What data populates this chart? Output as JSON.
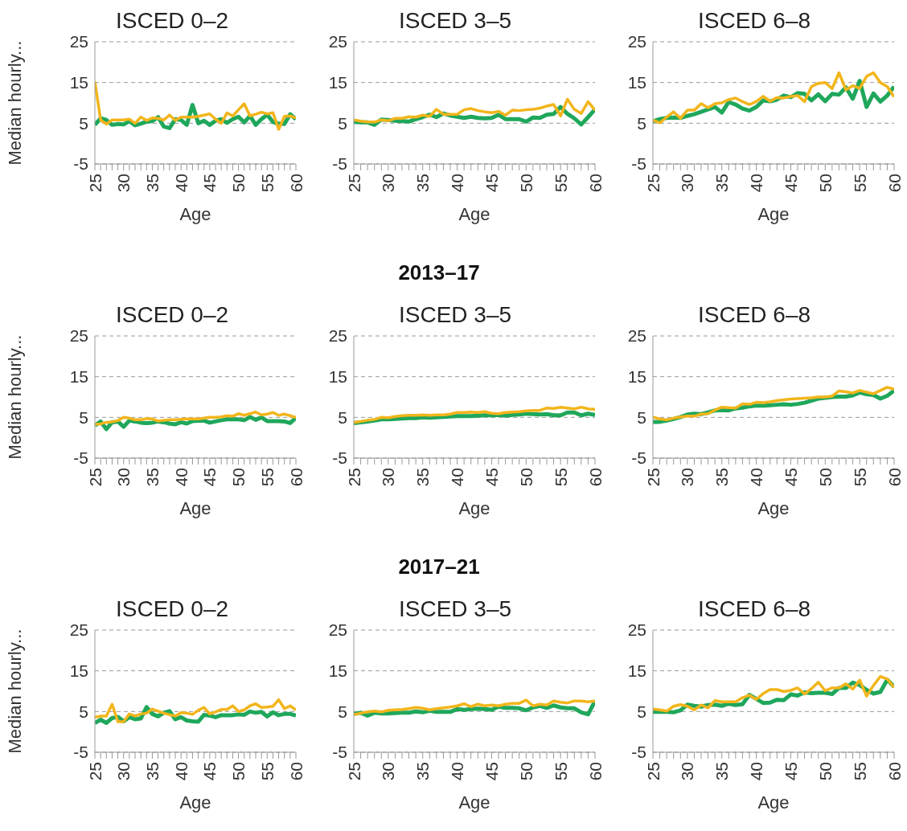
{
  "chart_data": [
    {
      "type": "line",
      "title": "ISCED 0–2",
      "xlabel": "Age",
      "ylabel": "Median hourly...",
      "x": [
        25,
        26,
        27,
        28,
        29,
        30,
        31,
        32,
        33,
        34,
        35,
        36,
        37,
        38,
        39,
        40,
        41,
        42,
        43,
        44,
        45,
        46,
        47,
        48,
        49,
        50,
        51,
        52,
        53,
        54,
        55,
        56,
        57,
        58,
        59,
        60
      ],
      "xlim": [
        25,
        60
      ],
      "xticks": [
        25,
        {
          "value": 26,
          "label": null
        },
        {
          "value": 27,
          "label": null
        },
        {
          "value": 28,
          "label": null
        },
        {
          "value": 29,
          "label": null
        },
        30,
        {
          "value": 31,
          "label": null
        },
        {
          "value": 32,
          "label": null
        },
        {
          "value": 33,
          "label": null
        },
        {
          "value": 34,
          "label": null
        },
        35,
        {
          "value": 36,
          "label": null
        },
        {
          "value": 37,
          "label": null
        },
        {
          "value": 38,
          "label": null
        },
        {
          "value": 39,
          "label": null
        },
        40,
        {
          "value": 41,
          "label": null
        },
        {
          "value": 42,
          "label": null
        },
        {
          "value": 43,
          "label": null
        },
        {
          "value": 44,
          "label": null
        },
        45,
        {
          "value": 46,
          "label": null
        },
        {
          "value": 47,
          "label": null
        },
        {
          "value": 48,
          "label": null
        },
        {
          "value": 49,
          "label": null
        },
        50,
        {
          "value": 51,
          "label": null
        },
        {
          "value": 52,
          "label": null
        },
        {
          "value": 53,
          "label": null
        },
        {
          "value": 54,
          "label": null
        },
        55,
        {
          "value": 56,
          "label": null
        },
        {
          "value": 57,
          "label": null
        },
        {
          "value": 58,
          "label": null
        },
        {
          "value": 59,
          "label": null
        },
        60
      ],
      "ylim": [
        -5,
        25
      ],
      "yticks": [
        -5,
        5,
        15,
        25
      ],
      "grid": "y",
      "series": [
        {
          "color": "#1fa75b",
          "values": [
            4.6,
            6.2,
            5.8,
            4.6,
            4.8,
            4.7,
            5.5,
            4.5,
            4.9,
            5.4,
            5.5,
            6.5,
            4.2,
            3.8,
            6,
            5.8,
            4.6,
            9.5,
            5,
            5.6,
            4.6,
            5.6,
            6,
            5.1,
            6,
            6.6,
            5.2,
            6.8,
            4.6,
            6,
            7.1,
            5.3,
            4.9,
            4.8,
            7.2,
            6
          ]
        },
        {
          "color": "#f2b51b",
          "values": [
            15.2,
            5.8,
            4.8,
            5.8,
            5.8,
            5.8,
            6,
            5,
            6.5,
            5.7,
            6.3,
            6.2,
            5.8,
            7,
            5.7,
            6.5,
            6.5,
            6.5,
            6.7,
            7,
            7.3,
            6,
            5,
            7.5,
            6.8,
            8.3,
            9.8,
            6.8,
            7.2,
            7.7,
            7.3,
            7.6,
            3.5,
            6.7,
            6.8,
            6.3
          ]
        }
      ]
    },
    {
      "type": "line",
      "title": "ISCED 3–5",
      "xlabel": "Age",
      "x": [
        25,
        26,
        27,
        28,
        29,
        30,
        31,
        32,
        33,
        34,
        35,
        36,
        37,
        38,
        39,
        40,
        41,
        42,
        43,
        44,
        45,
        46,
        47,
        48,
        49,
        50,
        51,
        52,
        53,
        54,
        55,
        56,
        57,
        58,
        59,
        60
      ],
      "xlim": [
        25,
        60
      ],
      "xticks": [
        25,
        {
          "value": 26,
          "label": null
        },
        {
          "value": 27,
          "label": null
        },
        {
          "value": 28,
          "label": null
        },
        {
          "value": 29,
          "label": null
        },
        30,
        {
          "value": 31,
          "label": null
        },
        {
          "value": 32,
          "label": null
        },
        {
          "value": 33,
          "label": null
        },
        {
          "value": 34,
          "label": null
        },
        35,
        {
          "value": 36,
          "label": null
        },
        {
          "value": 37,
          "label": null
        },
        {
          "value": 38,
          "label": null
        },
        {
          "value": 39,
          "label": null
        },
        40,
        {
          "value": 41,
          "label": null
        },
        {
          "value": 42,
          "label": null
        },
        {
          "value": 43,
          "label": null
        },
        {
          "value": 44,
          "label": null
        },
        45,
        {
          "value": 46,
          "label": null
        },
        {
          "value": 47,
          "label": null
        },
        {
          "value": 48,
          "label": null
        },
        {
          "value": 49,
          "label": null
        },
        50,
        {
          "value": 51,
          "label": null
        },
        {
          "value": 52,
          "label": null
        },
        {
          "value": 53,
          "label": null
        },
        {
          "value": 54,
          "label": null
        },
        55,
        {
          "value": 56,
          "label": null
        },
        {
          "value": 57,
          "label": null
        },
        {
          "value": 58,
          "label": null
        },
        {
          "value": 59,
          "label": null
        },
        60
      ],
      "ylim": [
        -5,
        25
      ],
      "yticks": [
        -5,
        5,
        15,
        25
      ],
      "grid": "y",
      "series": [
        {
          "color": "#1fa75b",
          "values": [
            5.3,
            5.2,
            5.2,
            4.6,
            5.9,
            5.8,
            5.6,
            5.5,
            5.4,
            6,
            6.5,
            7.1,
            6.5,
            7.4,
            6.9,
            6.6,
            6.3,
            6.6,
            6.3,
            6.2,
            6.3,
            7.1,
            6,
            6,
            6,
            5.4,
            6.4,
            6.3,
            7.1,
            7.3,
            9,
            7.3,
            6.2,
            4.7,
            6.5,
            8.4
          ]
        },
        {
          "color": "#f2b51b",
          "values": [
            5.8,
            5.5,
            5.3,
            5.3,
            5.8,
            5.6,
            6.2,
            6.2,
            6.6,
            6.5,
            7,
            6.7,
            8.4,
            7.2,
            7.2,
            7.2,
            8.3,
            8.6,
            8.1,
            7.8,
            7.6,
            7.9,
            7,
            8.2,
            8.1,
            8.3,
            8.4,
            8.7,
            9.2,
            9.6,
            6.8,
            10.9,
            8.4,
            7.4,
            10.3,
            8.2
          ]
        }
      ]
    },
    {
      "type": "line",
      "title": "ISCED 6–8",
      "xlabel": "Age",
      "x": [
        25,
        26,
        27,
        28,
        29,
        30,
        31,
        32,
        33,
        34,
        35,
        36,
        37,
        38,
        39,
        40,
        41,
        42,
        43,
        44,
        45,
        46,
        47,
        48,
        49,
        50,
        51,
        52,
        53,
        54,
        55,
        56,
        57,
        58,
        59,
        60
      ],
      "xlim": [
        25,
        60
      ],
      "xticks": [
        25,
        {
          "value": 26,
          "label": null
        },
        {
          "value": 27,
          "label": null
        },
        {
          "value": 28,
          "label": null
        },
        {
          "value": 29,
          "label": null
        },
        30,
        {
          "value": 31,
          "label": null
        },
        {
          "value": 32,
          "label": null
        },
        {
          "value": 33,
          "label": null
        },
        {
          "value": 34,
          "label": null
        },
        35,
        {
          "value": 36,
          "label": null
        },
        {
          "value": 37,
          "label": null
        },
        {
          "value": 38,
          "label": null
        },
        {
          "value": 39,
          "label": null
        },
        40,
        {
          "value": 41,
          "label": null
        },
        {
          "value": 42,
          "label": null
        },
        {
          "value": 43,
          "label": null
        },
        {
          "value": 44,
          "label": null
        },
        45,
        {
          "value": 46,
          "label": null
        },
        {
          "value": 47,
          "label": null
        },
        {
          "value": 48,
          "label": null
        },
        {
          "value": 49,
          "label": null
        },
        50,
        {
          "value": 51,
          "label": null
        },
        {
          "value": 52,
          "label": null
        },
        {
          "value": 53,
          "label": null
        },
        {
          "value": 54,
          "label": null
        },
        55,
        {
          "value": 56,
          "label": null
        },
        {
          "value": 57,
          "label": null
        },
        {
          "value": 58,
          "label": null
        },
        {
          "value": 59,
          "label": null
        },
        60
      ],
      "ylim": [
        -5,
        25
      ],
      "yticks": [
        -5,
        5,
        15,
        25
      ],
      "grid": "y",
      "series": [
        {
          "color": "#1fa75b",
          "values": [
            5.5,
            6,
            6.3,
            6.4,
            6.3,
            6.8,
            7.2,
            7.8,
            8.4,
            9,
            7.6,
            10.2,
            9.6,
            8.6,
            8.1,
            9,
            10.6,
            10.4,
            10.8,
            11.8,
            11.4,
            12.4,
            12.2,
            10.6,
            12.1,
            10.4,
            12.2,
            12,
            13.8,
            11,
            15.4,
            9,
            12.3,
            10.3,
            11.8,
            14
          ]
        },
        {
          "color": "#f2b51b",
          "values": [
            5.8,
            5.1,
            6.5,
            7.8,
            6.2,
            8.2,
            8.2,
            9.8,
            8.8,
            9.8,
            10,
            10.8,
            11.2,
            10.3,
            9.6,
            10.3,
            11.6,
            10.4,
            11.3,
            11.2,
            11.6,
            11.8,
            10.3,
            14,
            14.8,
            15,
            13.5,
            17.4,
            13.2,
            14.2,
            13.6,
            16.5,
            17.4,
            15,
            14,
            11.5
          ]
        }
      ]
    },
    {
      "type": "line",
      "title": "ISCED 0–2",
      "xlabel": "Age",
      "ylabel": "Median hourly...",
      "x": [
        25,
        26,
        27,
        28,
        29,
        30,
        31,
        32,
        33,
        34,
        35,
        36,
        37,
        38,
        39,
        40,
        41,
        42,
        43,
        44,
        45,
        46,
        47,
        48,
        49,
        50,
        51,
        52,
        53,
        54,
        55,
        56,
        57,
        58,
        59,
        60
      ],
      "xlim": [
        25,
        60
      ],
      "xticks": [
        25,
        {
          "value": 26,
          "label": null
        },
        {
          "value": 27,
          "label": null
        },
        {
          "value": 28,
          "label": null
        },
        {
          "value": 29,
          "label": null
        },
        30,
        {
          "value": 31,
          "label": null
        },
        {
          "value": 32,
          "label": null
        },
        {
          "value": 33,
          "label": null
        },
        {
          "value": 34,
          "label": null
        },
        35,
        {
          "value": 36,
          "label": null
        },
        {
          "value": 37,
          "label": null
        },
        {
          "value": 38,
          "label": null
        },
        {
          "value": 39,
          "label": null
        },
        40,
        {
          "value": 41,
          "label": null
        },
        {
          "value": 42,
          "label": null
        },
        {
          "value": 43,
          "label": null
        },
        {
          "value": 44,
          "label": null
        },
        45,
        {
          "value": 46,
          "label": null
        },
        {
          "value": 47,
          "label": null
        },
        {
          "value": 48,
          "label": null
        },
        {
          "value": 49,
          "label": null
        },
        50,
        {
          "value": 51,
          "label": null
        },
        {
          "value": 52,
          "label": null
        },
        {
          "value": 53,
          "label": null
        },
        {
          "value": 54,
          "label": null
        },
        55,
        {
          "value": 56,
          "label": null
        },
        {
          "value": 57,
          "label": null
        },
        {
          "value": 58,
          "label": null
        },
        {
          "value": 59,
          "label": null
        },
        60
      ],
      "ylim": [
        -5,
        25
      ],
      "yticks": [
        -5,
        5,
        15,
        25
      ],
      "grid": "y",
      "series": [
        {
          "color": "#1fa75b",
          "values": [
            3,
            4,
            2.1,
            3.8,
            4,
            2.7,
            4.2,
            4,
            3.7,
            3.6,
            3.7,
            4,
            3.8,
            3.5,
            3.3,
            3.8,
            3.5,
            4.1,
            4.2,
            4.2,
            3.7,
            4,
            4.3,
            4.5,
            4.5,
            4.5,
            4.3,
            5.1,
            4.4,
            5,
            4.1,
            4.1,
            4.1,
            4,
            3.6,
            4.9
          ]
        },
        {
          "color": "#f2b51b",
          "values": [
            3.3,
            3.4,
            3.8,
            3.9,
            4.2,
            5,
            4.8,
            4.4,
            4.4,
            4.7,
            4.6,
            4.1,
            4.3,
            4.4,
            4.4,
            4.5,
            4.6,
            4.6,
            4.6,
            4.8,
            5,
            5,
            5.1,
            5.4,
            5.3,
            5.9,
            5.5,
            5.9,
            6.3,
            5.6,
            5.8,
            6.2,
            5.5,
            5.8,
            5.4,
            5
          ]
        }
      ]
    },
    {
      "type": "line",
      "title": "ISCED 3–5",
      "xlabel": "Age",
      "x": [
        25,
        26,
        27,
        28,
        29,
        30,
        31,
        32,
        33,
        34,
        35,
        36,
        37,
        38,
        39,
        40,
        41,
        42,
        43,
        44,
        45,
        46,
        47,
        48,
        49,
        50,
        51,
        52,
        53,
        54,
        55,
        56,
        57,
        58,
        59,
        60
      ],
      "xlim": [
        25,
        60
      ],
      "xticks": [
        25,
        {
          "value": 26,
          "label": null
        },
        {
          "value": 27,
          "label": null
        },
        {
          "value": 28,
          "label": null
        },
        {
          "value": 29,
          "label": null
        },
        30,
        {
          "value": 31,
          "label": null
        },
        {
          "value": 32,
          "label": null
        },
        {
          "value": 33,
          "label": null
        },
        {
          "value": 34,
          "label": null
        },
        35,
        {
          "value": 36,
          "label": null
        },
        {
          "value": 37,
          "label": null
        },
        {
          "value": 38,
          "label": null
        },
        {
          "value": 39,
          "label": null
        },
        40,
        {
          "value": 41,
          "label": null
        },
        {
          "value": 42,
          "label": null
        },
        {
          "value": 43,
          "label": null
        },
        {
          "value": 44,
          "label": null
        },
        45,
        {
          "value": 46,
          "label": null
        },
        {
          "value": 47,
          "label": null
        },
        {
          "value": 48,
          "label": null
        },
        {
          "value": 49,
          "label": null
        },
        50,
        {
          "value": 51,
          "label": null
        },
        {
          "value": 52,
          "label": null
        },
        {
          "value": 53,
          "label": null
        },
        {
          "value": 54,
          "label": null
        },
        55,
        {
          "value": 56,
          "label": null
        },
        {
          "value": 57,
          "label": null
        },
        {
          "value": 58,
          "label": null
        },
        {
          "value": 59,
          "label": null
        },
        60
      ],
      "ylim": [
        -5,
        25
      ],
      "yticks": [
        -5,
        5,
        15,
        25
      ],
      "grid": "y",
      "series": [
        {
          "color": "#1fa75b",
          "values": [
            3.6,
            3.8,
            4,
            4.2,
            4.5,
            4.5,
            4.6,
            4.7,
            4.8,
            4.8,
            5,
            4.9,
            5,
            5.1,
            5.2,
            5.3,
            5.3,
            5.3,
            5.4,
            5.5,
            5.5,
            5.6,
            5.4,
            5.6,
            5.7,
            5.9,
            5.8,
            5.7,
            5.8,
            5.5,
            5.5,
            6.2,
            6.2,
            5.5,
            5.9,
            5.6
          ]
        },
        {
          "color": "#f2b51b",
          "values": [
            3.8,
            4,
            4.3,
            4.5,
            5,
            4.9,
            5.2,
            5.4,
            5.5,
            5.5,
            5.6,
            5.5,
            5.6,
            5.6,
            5.8,
            6.2,
            6.2,
            6.3,
            6.2,
            6.4,
            6,
            5.9,
            6.2,
            6.3,
            6.4,
            6.6,
            6.7,
            6.7,
            7.3,
            7.2,
            7.5,
            7.3,
            7.1,
            7.5,
            7.1,
            7
          ]
        }
      ],
      "subtitle": "2013–17"
    },
    {
      "type": "line",
      "title": "ISCED 6–8",
      "xlabel": "Age",
      "x": [
        25,
        26,
        27,
        28,
        29,
        30,
        31,
        32,
        33,
        34,
        35,
        36,
        37,
        38,
        39,
        40,
        41,
        42,
        43,
        44,
        45,
        46,
        47,
        48,
        49,
        50,
        51,
        52,
        53,
        54,
        55,
        56,
        57,
        58,
        59,
        60
      ],
      "xlim": [
        25,
        60
      ],
      "xticks": [
        25,
        {
          "value": 26,
          "label": null
        },
        {
          "value": 27,
          "label": null
        },
        {
          "value": 28,
          "label": null
        },
        {
          "value": 29,
          "label": null
        },
        30,
        {
          "value": 31,
          "label": null
        },
        {
          "value": 32,
          "label": null
        },
        {
          "value": 33,
          "label": null
        },
        {
          "value": 34,
          "label": null
        },
        35,
        {
          "value": 36,
          "label": null
        },
        {
          "value": 37,
          "label": null
        },
        {
          "value": 38,
          "label": null
        },
        {
          "value": 39,
          "label": null
        },
        40,
        {
          "value": 41,
          "label": null
        },
        {
          "value": 42,
          "label": null
        },
        {
          "value": 43,
          "label": null
        },
        {
          "value": 44,
          "label": null
        },
        45,
        {
          "value": 46,
          "label": null
        },
        {
          "value": 47,
          "label": null
        },
        {
          "value": 48,
          "label": null
        },
        {
          "value": 49,
          "label": null
        },
        50,
        {
          "value": 51,
          "label": null
        },
        {
          "value": 52,
          "label": null
        },
        {
          "value": 53,
          "label": null
        },
        {
          "value": 54,
          "label": null
        },
        55,
        {
          "value": 56,
          "label": null
        },
        {
          "value": 57,
          "label": null
        },
        {
          "value": 58,
          "label": null
        },
        {
          "value": 59,
          "label": null
        },
        60
      ],
      "ylim": [
        -5,
        25
      ],
      "yticks": [
        -5,
        5,
        15,
        25
      ],
      "grid": "y",
      "series": [
        {
          "color": "#1fa75b",
          "values": [
            3.9,
            3.9,
            4.2,
            4.6,
            5.1,
            5.7,
            5.9,
            5.8,
            6.2,
            6.7,
            6.8,
            6.7,
            7.2,
            7.4,
            7.7,
            7.9,
            7.9,
            8,
            8.1,
            8.2,
            8.1,
            8.3,
            8.6,
            9.1,
            9.6,
            9.8,
            10,
            10.1,
            10.1,
            10.4,
            11.1,
            10.7,
            10.5,
            9.6,
            10.3,
            11.6
          ]
        },
        {
          "color": "#f2b51b",
          "values": [
            5.1,
            4.6,
            4.4,
            4.8,
            5.1,
            5.3,
            5.3,
            5.8,
            5.9,
            6.8,
            7.5,
            7.4,
            7.3,
            8.3,
            8.2,
            8.7,
            8.6,
            8.8,
            9.1,
            9.3,
            9.5,
            9.6,
            9.7,
            9.8,
            10,
            10,
            10.2,
            11.5,
            11.3,
            11,
            11.6,
            11.2,
            10.8,
            11.6,
            12.4,
            11.9
          ]
        }
      ]
    },
    {
      "type": "line",
      "title": "ISCED 0–2",
      "xlabel": "Age",
      "ylabel": "Median hourly...",
      "x": [
        25,
        26,
        27,
        28,
        29,
        30,
        31,
        32,
        33,
        34,
        35,
        36,
        37,
        38,
        39,
        40,
        41,
        42,
        43,
        44,
        45,
        46,
        47,
        48,
        49,
        50,
        51,
        52,
        53,
        54,
        55,
        56,
        57,
        58,
        59,
        60
      ],
      "xlim": [
        25,
        60
      ],
      "xticks": [
        25,
        {
          "value": 26,
          "label": null
        },
        {
          "value": 27,
          "label": null
        },
        {
          "value": 28,
          "label": null
        },
        {
          "value": 29,
          "label": null
        },
        30,
        {
          "value": 31,
          "label": null
        },
        {
          "value": 32,
          "label": null
        },
        {
          "value": 33,
          "label": null
        },
        {
          "value": 34,
          "label": null
        },
        35,
        {
          "value": 36,
          "label": null
        },
        {
          "value": 37,
          "label": null
        },
        {
          "value": 38,
          "label": null
        },
        {
          "value": 39,
          "label": null
        },
        40,
        {
          "value": 41,
          "label": null
        },
        {
          "value": 42,
          "label": null
        },
        {
          "value": 43,
          "label": null
        },
        {
          "value": 44,
          "label": null
        },
        45,
        {
          "value": 46,
          "label": null
        },
        {
          "value": 47,
          "label": null
        },
        {
          "value": 48,
          "label": null
        },
        {
          "value": 49,
          "label": null
        },
        50,
        {
          "value": 51,
          "label": null
        },
        {
          "value": 52,
          "label": null
        },
        {
          "value": 53,
          "label": null
        },
        {
          "value": 54,
          "label": null
        },
        55,
        {
          "value": 56,
          "label": null
        },
        {
          "value": 57,
          "label": null
        },
        {
          "value": 58,
          "label": null
        },
        {
          "value": 59,
          "label": null
        },
        60
      ],
      "ylim": [
        -5,
        25
      ],
      "yticks": [
        -5,
        5,
        15,
        25
      ],
      "grid": "y",
      "series": [
        {
          "color": "#1fa75b",
          "values": [
            2.2,
            3,
            2.2,
            3.4,
            3.7,
            2.6,
            3.6,
            3.1,
            3.3,
            6.1,
            4.4,
            3.8,
            4.7,
            5.1,
            3.1,
            3.6,
            2.8,
            2.6,
            2.5,
            4.2,
            4,
            3.6,
            4.1,
            4.1,
            4.1,
            4.3,
            4.2,
            5,
            4.7,
            4.9,
            3.8,
            4.8,
            4.1,
            4.4,
            4.4,
            4
          ]
        },
        {
          "color": "#f2b51b",
          "values": [
            3.6,
            3.9,
            3.9,
            6.8,
            2.5,
            2.5,
            4.4,
            3.9,
            4.4,
            4.6,
            5.6,
            5.1,
            4.6,
            4.2,
            3.9,
            4.7,
            4.6,
            4.3,
            5.3,
            6,
            4.4,
            4.9,
            5.5,
            5.5,
            6.4,
            5,
            5.4,
            6.4,
            6.9,
            6,
            6.1,
            6.3,
            7.9,
            5.7,
            6.4,
            5.4
          ]
        }
      ]
    },
    {
      "type": "line",
      "title": "ISCED 3–5",
      "xlabel": "Age",
      "x": [
        25,
        26,
        27,
        28,
        29,
        30,
        31,
        32,
        33,
        34,
        35,
        36,
        37,
        38,
        39,
        40,
        41,
        42,
        43,
        44,
        45,
        46,
        47,
        48,
        49,
        50,
        51,
        52,
        53,
        54,
        55,
        56,
        57,
        58,
        59,
        60
      ],
      "xlim": [
        25,
        60
      ],
      "xticks": [
        25,
        {
          "value": 26,
          "label": null
        },
        {
          "value": 27,
          "label": null
        },
        {
          "value": 28,
          "label": null
        },
        {
          "value": 29,
          "label": null
        },
        30,
        {
          "value": 31,
          "label": null
        },
        {
          "value": 32,
          "label": null
        },
        {
          "value": 33,
          "label": null
        },
        {
          "value": 34,
          "label": null
        },
        35,
        {
          "value": 36,
          "label": null
        },
        {
          "value": 37,
          "label": null
        },
        {
          "value": 38,
          "label": null
        },
        {
          "value": 39,
          "label": null
        },
        40,
        {
          "value": 41,
          "label": null
        },
        {
          "value": 42,
          "label": null
        },
        {
          "value": 43,
          "label": null
        },
        {
          "value": 44,
          "label": null
        },
        45,
        {
          "value": 46,
          "label": null
        },
        {
          "value": 47,
          "label": null
        },
        {
          "value": 48,
          "label": null
        },
        {
          "value": 49,
          "label": null
        },
        50,
        {
          "value": 51,
          "label": null
        },
        {
          "value": 52,
          "label": null
        },
        {
          "value": 53,
          "label": null
        },
        {
          "value": 54,
          "label": null
        },
        55,
        {
          "value": 56,
          "label": null
        },
        {
          "value": 57,
          "label": null
        },
        {
          "value": 58,
          "label": null
        },
        {
          "value": 59,
          "label": null
        },
        60
      ],
      "ylim": [
        -5,
        25
      ],
      "yticks": [
        -5,
        5,
        15,
        25
      ],
      "grid": "y",
      "series": [
        {
          "color": "#1fa75b",
          "values": [
            4.4,
            4.7,
            4,
            4.7,
            4.5,
            4.5,
            4.6,
            4.7,
            4.7,
            5,
            4.8,
            5.2,
            4.9,
            4.9,
            4.9,
            5.6,
            5.4,
            5.6,
            5.7,
            5.6,
            5.4,
            6.2,
            5.9,
            5.9,
            5.8,
            5.3,
            6,
            6.4,
            5.9,
            6.5,
            6,
            5.8,
            5.8,
            4.8,
            4.3,
            7.6
          ]
        },
        {
          "color": "#f2b51b",
          "values": [
            4.2,
            4.6,
            4.9,
            5.1,
            4.9,
            5.3,
            5.4,
            5.5,
            5.7,
            6,
            5.8,
            5.4,
            5.7,
            5.9,
            6.1,
            6.4,
            6.9,
            6.2,
            6.8,
            6.4,
            6.6,
            6.4,
            6.8,
            7,
            7,
            7.8,
            6.4,
            6.8,
            6.6,
            7.6,
            7.3,
            7.1,
            7.6,
            7.6,
            7.4,
            7.6
          ]
        }
      ],
      "subtitle": "2017–21"
    },
    {
      "type": "line",
      "title": "ISCED 6–8",
      "xlabel": "Age",
      "x": [
        25,
        26,
        27,
        28,
        29,
        30,
        31,
        32,
        33,
        34,
        35,
        36,
        37,
        38,
        39,
        40,
        41,
        42,
        43,
        44,
        45,
        46,
        47,
        48,
        49,
        50,
        51,
        52,
        53,
        54,
        55,
        56,
        57,
        58,
        59,
        60
      ],
      "xlim": [
        25,
        60
      ],
      "xticks": [
        25,
        {
          "value": 26,
          "label": null
        },
        {
          "value": 27,
          "label": null
        },
        {
          "value": 28,
          "label": null
        },
        {
          "value": 29,
          "label": null
        },
        30,
        {
          "value": 31,
          "label": null
        },
        {
          "value": 32,
          "label": null
        },
        {
          "value": 33,
          "label": null
        },
        {
          "value": 34,
          "label": null
        },
        35,
        {
          "value": 36,
          "label": null
        },
        {
          "value": 37,
          "label": null
        },
        {
          "value": 38,
          "label": null
        },
        {
          "value": 39,
          "label": null
        },
        40,
        {
          "value": 41,
          "label": null
        },
        {
          "value": 42,
          "label": null
        },
        {
          "value": 43,
          "label": null
        },
        {
          "value": 44,
          "label": null
        },
        45,
        {
          "value": 46,
          "label": null
        },
        {
          "value": 47,
          "label": null
        },
        {
          "value": 48,
          "label": null
        },
        {
          "value": 49,
          "label": null
        },
        50,
        {
          "value": 51,
          "label": null
        },
        {
          "value": 52,
          "label": null
        },
        {
          "value": 53,
          "label": null
        },
        {
          "value": 54,
          "label": null
        },
        55,
        {
          "value": 56,
          "label": null
        },
        {
          "value": 57,
          "label": null
        },
        {
          "value": 58,
          "label": null
        },
        {
          "value": 59,
          "label": null
        },
        60
      ],
      "ylim": [
        -5,
        25
      ],
      "yticks": [
        -5,
        5,
        15,
        25
      ],
      "grid": "y",
      "series": [
        {
          "color": "#1fa75b",
          "values": [
            4.9,
            4.9,
            4.9,
            4.8,
            5.3,
            6.7,
            6.4,
            6.2,
            6.6,
            6.7,
            6.4,
            6.9,
            6.6,
            6.8,
            9.1,
            8.1,
            7.1,
            7.2,
            7.9,
            7.8,
            9.2,
            8.9,
            9.7,
            9.5,
            9.6,
            9.6,
            9.3,
            10.8,
            10.8,
            12.1,
            11.5,
            10.3,
            9.4,
            9.8,
            12.8,
            11.1
          ]
        },
        {
          "color": "#f2b51b",
          "values": [
            5.6,
            5.4,
            5.1,
            6.3,
            6.7,
            6.3,
            5.4,
            6.6,
            5.9,
            7.7,
            7.4,
            7.4,
            7.4,
            8.4,
            9,
            8,
            9.4,
            10.4,
            10.4,
            9.9,
            10.2,
            10.8,
            9.3,
            10.6,
            12.2,
            10.1,
            10.8,
            10.8,
            11.8,
            10.5,
            12.7,
            8.8,
            11.4,
            13.6,
            13,
            10.9
          ]
        }
      ]
    }
  ]
}
